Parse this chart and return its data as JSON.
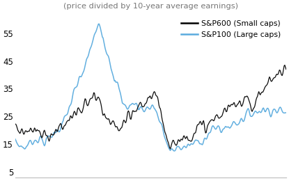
{
  "title": "(price divided by 10-year average earnings)",
  "legend_entries": [
    "S&P600 (Small caps)",
    "S&P100 (Large caps)"
  ],
  "line_color_small": "#000000",
  "line_color_large": "#5aabde",
  "yticks": [
    5,
    15,
    25,
    35,
    45,
    55
  ],
  "ylim": [
    3,
    63
  ],
  "bg_color": "#ffffff",
  "linewidth_small": 0.9,
  "linewidth_large": 1.1,
  "title_fontsize": 8.2,
  "legend_fontsize": 7.8,
  "tick_fontsize": 8.5
}
